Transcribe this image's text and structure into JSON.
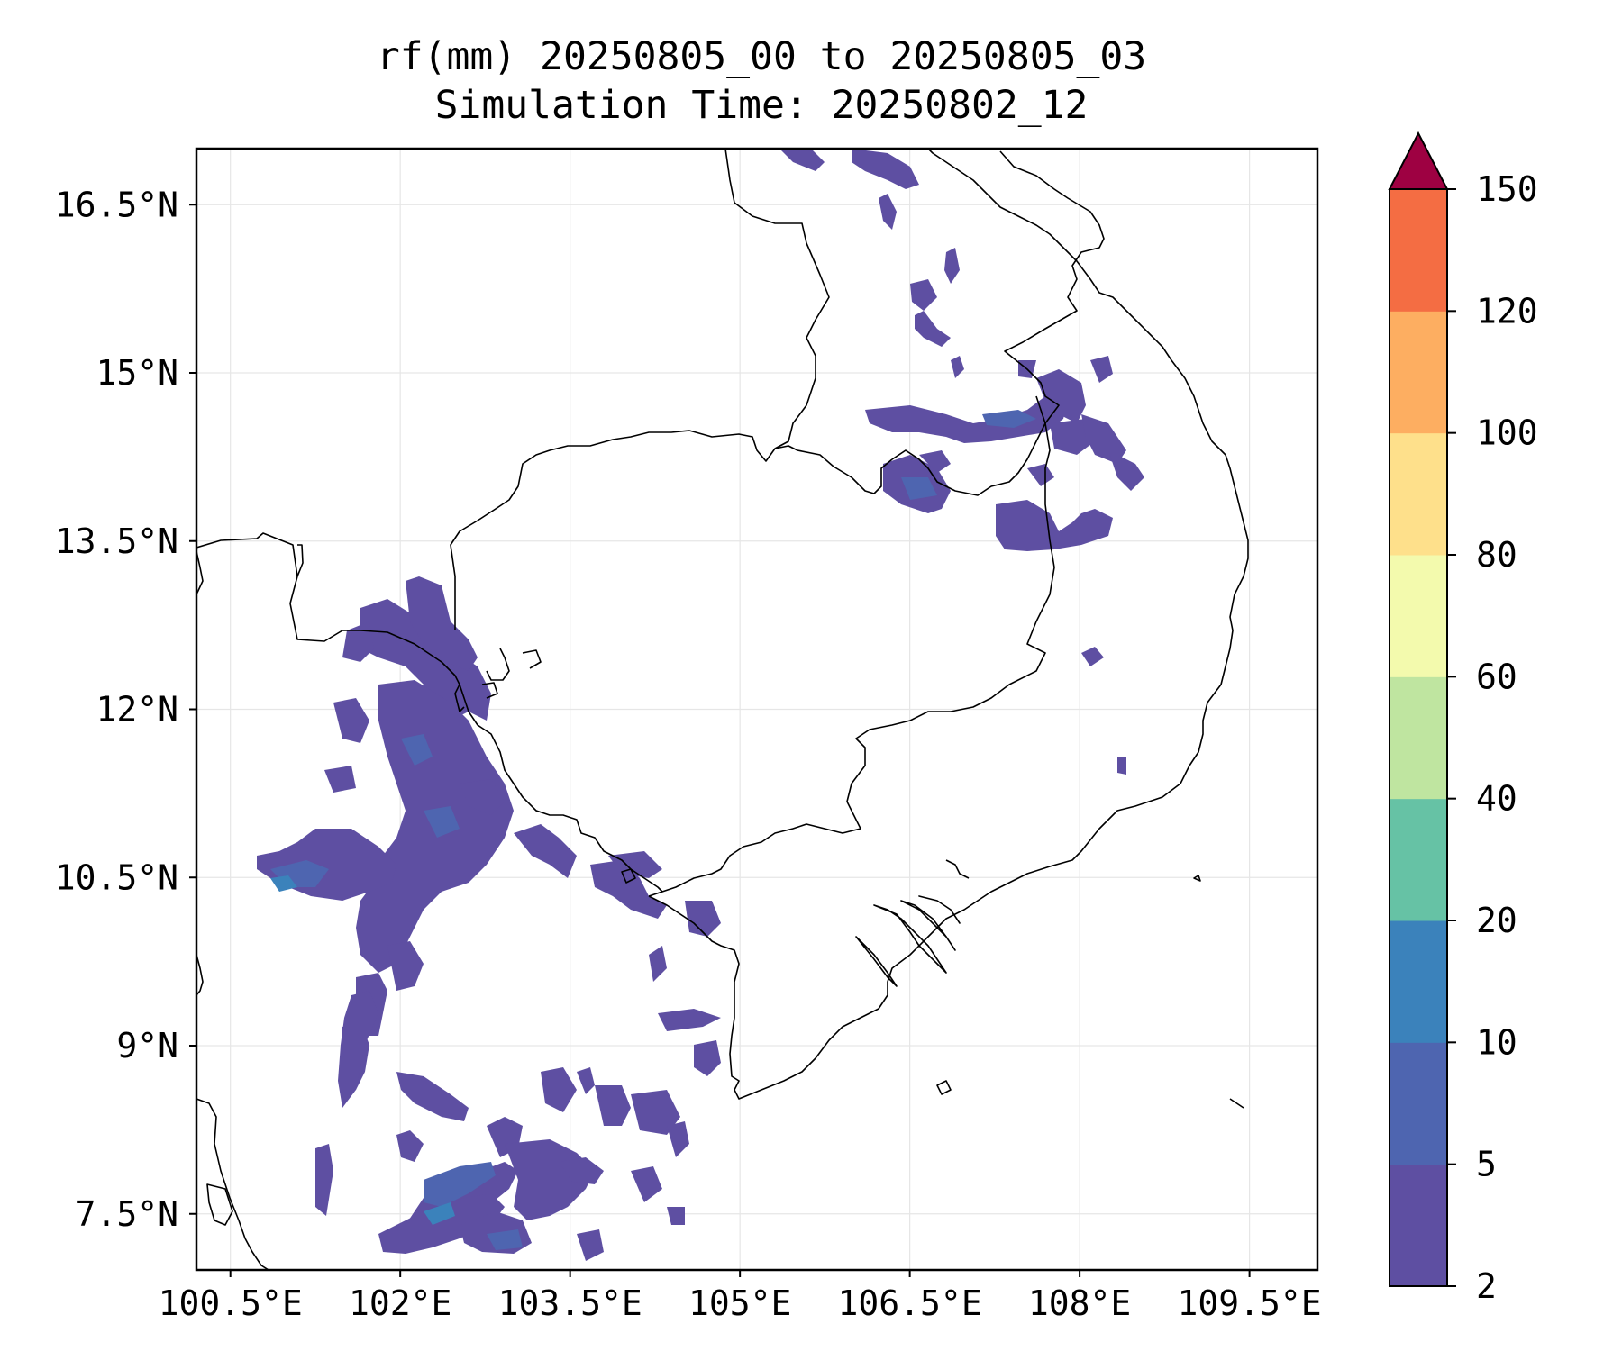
{
  "title": {
    "line1": "rf(mm) 20250805_00 to 20250805_03",
    "line2": "Simulation Time: 20250802_12"
  },
  "map": {
    "lon_range": [
      100.2,
      110.1
    ],
    "lat_range": [
      7.0,
      17.0
    ],
    "grid": true,
    "lon_ticks": [
      {
        "value": 100.5,
        "label": "100.5°E"
      },
      {
        "value": 102.0,
        "label": "102°E"
      },
      {
        "value": 103.5,
        "label": "103.5°E"
      },
      {
        "value": 105.0,
        "label": "105°E"
      },
      {
        "value": 106.5,
        "label": "106.5°E"
      },
      {
        "value": 108.0,
        "label": "108°E"
      },
      {
        "value": 109.5,
        "label": "109.5°E"
      }
    ],
    "lat_ticks": [
      {
        "value": 16.5,
        "label": "16.5°N"
      },
      {
        "value": 15.0,
        "label": "15°N"
      },
      {
        "value": 13.5,
        "label": "13.5°N"
      },
      {
        "value": 12.0,
        "label": "12°N"
      },
      {
        "value": 10.5,
        "label": "10.5°N"
      },
      {
        "value": 9.0,
        "label": "9°N"
      },
      {
        "value": 7.5,
        "label": "7.5°N"
      }
    ]
  },
  "colorbar": {
    "extend": "max",
    "extend_color": "#9e0142",
    "levels": [
      {
        "value": 2,
        "label": "2"
      },
      {
        "value": 5,
        "label": "5"
      },
      {
        "value": 10,
        "label": "10"
      },
      {
        "value": 20,
        "label": "20"
      },
      {
        "value": 40,
        "label": "40"
      },
      {
        "value": 60,
        "label": "60"
      },
      {
        "value": 80,
        "label": "80"
      },
      {
        "value": 100,
        "label": "100"
      },
      {
        "value": 120,
        "label": "120"
      },
      {
        "value": 150,
        "label": "150"
      }
    ],
    "colors": [
      "#5e4fa2",
      "#4e65b0",
      "#3b82bb",
      "#66c2a5",
      "#bfe5a0",
      "#f3faad",
      "#fee08b",
      "#fdae61",
      "#f46d43",
      "#d53e4f"
    ]
  },
  "rain_color_light": "#5e4fa2",
  "rain_color_mid": "#4e65b0",
  "rain_color_core": "#3b82bb"
}
